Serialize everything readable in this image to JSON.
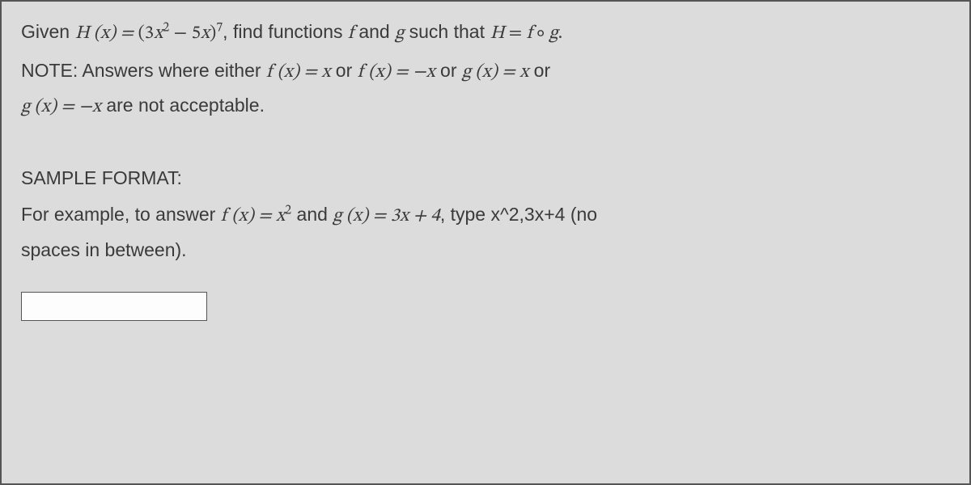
{
  "colors": {
    "background": "#dcdcdc",
    "text": "#3a3a3a",
    "border": "#555555",
    "input_bg": "#fdfdfd"
  },
  "typography": {
    "body_font": "Segoe UI / Helvetica Neue / Arial",
    "math_font": "Cambria Math / STIX / Latin Modern Math",
    "body_size_pt": 17,
    "heading_size_pt": 17
  },
  "problem": {
    "given_prefix": "Given ",
    "H_def_left": "H (x) = ",
    "H_def_paren_open": "(",
    "H_def_term1_coef": "3",
    "H_def_term1_var": "x",
    "H_def_term1_exp": "2",
    "H_def_minus": " − ",
    "H_def_term2_coef": "5",
    "H_def_term2_var": "x",
    "H_def_paren_close": ")",
    "H_def_outer_exp": "7",
    "after_comma": ", find functions ",
    "f": "f",
    "and": " and ",
    "g": "g",
    "such_that": " such that ",
    "H_eq": "H = f ∘ g.",
    "H_var": "H",
    "eq": " = ",
    "compose": " ∘ "
  },
  "note": {
    "prefix": "NOTE: Answers where either ",
    "fx_eq_x": "f (x) = x",
    "or1": " or ",
    "fx_eq_negx": "f (x) = −x",
    "or2": " or ",
    "gx_eq_x": "g (x) = x",
    "or3": " or",
    "gx_eq_negx": "g (x) = −x",
    "tail": " are not acceptable."
  },
  "sample": {
    "heading": "SAMPLE FORMAT:",
    "prefix": "For example, to answer ",
    "fx": "f (x) = x",
    "fx_exp": "2",
    "and": " and ",
    "gx": "g (x) = 3x + 4",
    "tail1": ", type x^2,3x+4 (no",
    "tail2": "spaces in between)."
  },
  "input": {
    "value": "",
    "placeholder": ""
  }
}
